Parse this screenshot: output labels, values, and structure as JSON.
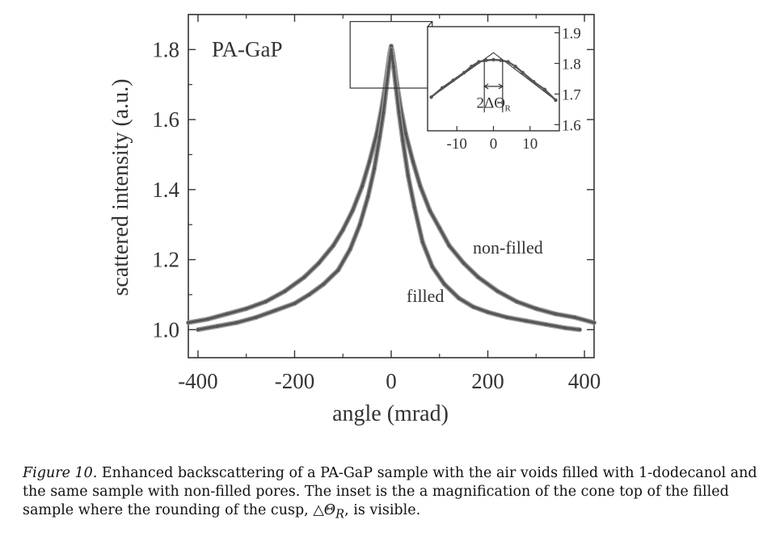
{
  "chart_data": [
    {
      "type": "line",
      "title": "",
      "annotation": "PA-GaP",
      "xlabel": "angle (mrad)",
      "ylabel": "scattered intensity (a.u.)",
      "xlim": [
        -420,
        420
      ],
      "ylim": [
        0.92,
        1.9
      ],
      "xticks": [
        -400,
        -200,
        0,
        200,
        400
      ],
      "xtick_labels": [
        "-400",
        "-200",
        "0",
        "200",
        "400"
      ],
      "yticks": [
        1.0,
        1.2,
        1.4,
        1.6,
        1.8
      ],
      "ytick_labels": [
        "1.0",
        "1.2",
        "1.4",
        "1.6",
        "1.8"
      ],
      "grid": false,
      "legend": "none",
      "series": [
        {
          "name": "non-filled",
          "x": [
            -420,
            -380,
            -340,
            -300,
            -260,
            -220,
            -180,
            -150,
            -120,
            -100,
            -80,
            -60,
            -45,
            -30,
            -20,
            -12,
            -6,
            -3,
            0,
            3,
            6,
            12,
            20,
            30,
            45,
            60,
            80,
            100,
            120,
            150,
            180,
            220,
            260,
            300,
            340,
            380,
            420
          ],
          "values": [
            1.02,
            1.03,
            1.045,
            1.06,
            1.08,
            1.11,
            1.15,
            1.19,
            1.24,
            1.285,
            1.34,
            1.41,
            1.48,
            1.56,
            1.63,
            1.7,
            1.76,
            1.79,
            1.81,
            1.79,
            1.76,
            1.7,
            1.63,
            1.56,
            1.48,
            1.41,
            1.34,
            1.29,
            1.24,
            1.19,
            1.15,
            1.11,
            1.08,
            1.06,
            1.045,
            1.035,
            1.02
          ]
        },
        {
          "name": "filled",
          "x": [
            -400,
            -360,
            -320,
            -280,
            -240,
            -200,
            -170,
            -140,
            -110,
            -85,
            -65,
            -48,
            -35,
            -24,
            -16,
            -10,
            -5,
            -2,
            0,
            2,
            5,
            10,
            16,
            24,
            35,
            48,
            65,
            85,
            110,
            140,
            170,
            200,
            240,
            280,
            320,
            360,
            390
          ],
          "values": [
            1.0,
            1.01,
            1.02,
            1.035,
            1.055,
            1.075,
            1.1,
            1.13,
            1.17,
            1.23,
            1.3,
            1.38,
            1.46,
            1.55,
            1.62,
            1.69,
            1.75,
            1.78,
            1.8,
            1.78,
            1.75,
            1.69,
            1.62,
            1.54,
            1.44,
            1.35,
            1.25,
            1.18,
            1.13,
            1.09,
            1.065,
            1.05,
            1.035,
            1.025,
            1.015,
            1.005,
            1.0
          ]
        }
      ]
    },
    {
      "type": "line",
      "title": "",
      "inset": true,
      "annotation": "2ΔΘ",
      "annotation_subscript": "R",
      "xlim": [
        -18,
        18
      ],
      "ylim": [
        1.58,
        1.92
      ],
      "xticks": [
        -10,
        0,
        10
      ],
      "xtick_labels": [
        "-10",
        "0",
        "10"
      ],
      "yticks": [
        1.6,
        1.7,
        1.8,
        1.9
      ],
      "ytick_labels": [
        "1.6",
        "1.7",
        "1.8",
        "1.9"
      ],
      "series": [
        {
          "name": "filled",
          "x": [
            -17,
            -14,
            -11,
            -8,
            -6,
            -4,
            -2,
            0,
            2,
            4,
            6,
            8,
            11,
            14,
            17
          ],
          "values": [
            1.69,
            1.72,
            1.745,
            1.77,
            1.79,
            1.805,
            1.81,
            1.812,
            1.81,
            1.805,
            1.79,
            1.77,
            1.74,
            1.715,
            1.68
          ]
        }
      ],
      "cusp_lines": {
        "x": [
          -17,
          0,
          17
        ],
        "values": [
          1.69,
          1.835,
          1.68
        ]
      },
      "marker_width": [
        -2.5,
        2.5
      ]
    }
  ],
  "caption": {
    "label": "Figure 10.",
    "text": "Enhanced backscattering of a PA-GaP sample with the air voids filled with 1-dodecanol and the same sample with non-filled pores. The inset is the a magnification of the cone top of the filled sample where the rounding of the cusp,",
    "symbol": "△Θ",
    "subscript": "R",
    "end": ", is visible."
  },
  "colors": {
    "axis": "#333333",
    "curve": "#555555",
    "curve_shadow": "#9a9a9a",
    "text": "#333333"
  }
}
